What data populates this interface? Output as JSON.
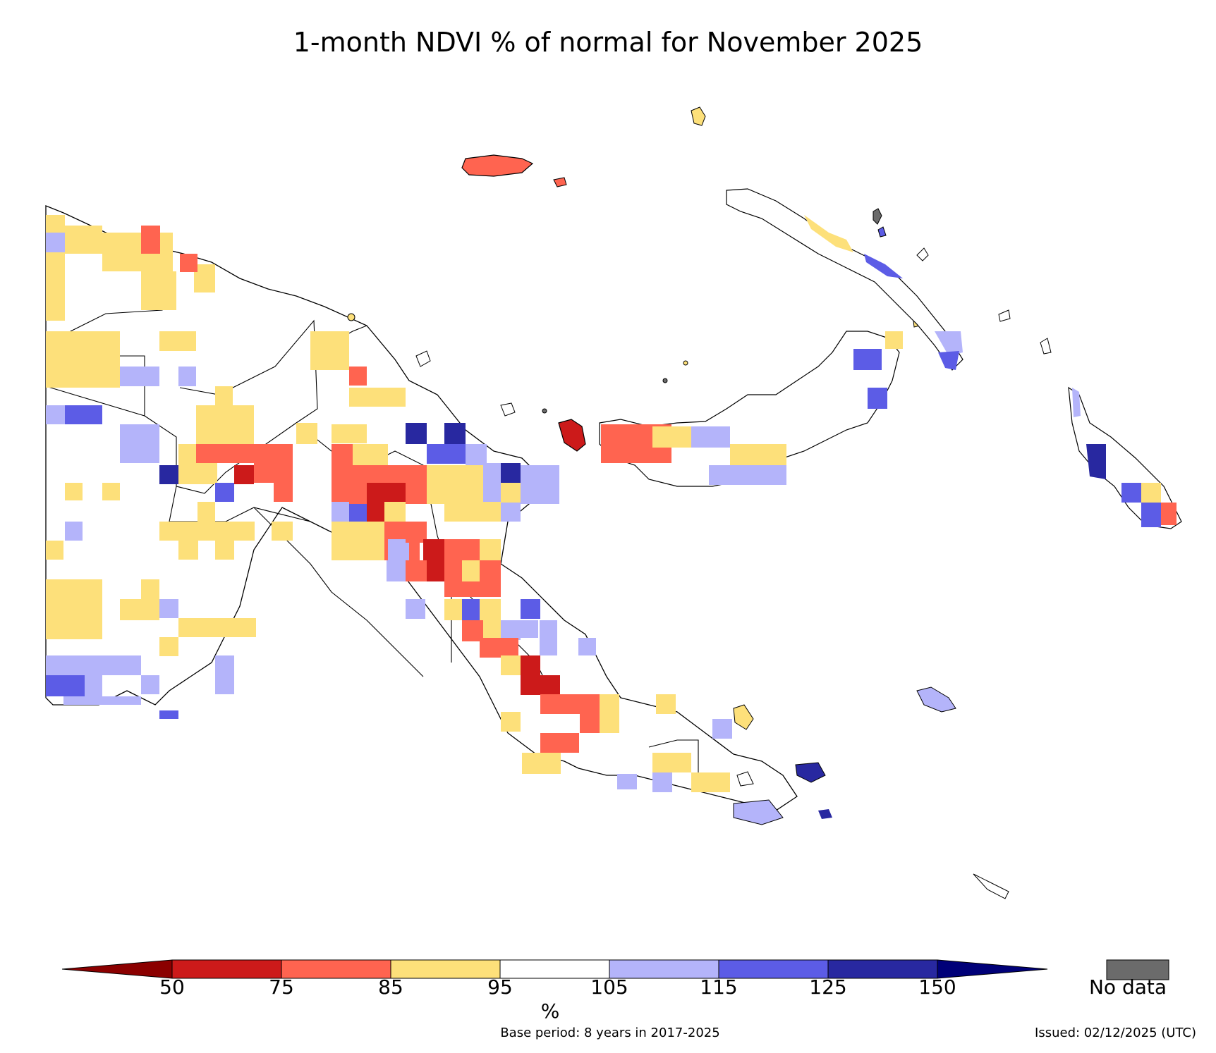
{
  "title": "1-month NDVI % of normal for November 2025",
  "legend": {
    "unit": "%",
    "ticks": [
      "50",
      "75",
      "85",
      "95",
      "105",
      "115",
      "125",
      "150"
    ],
    "classes": [
      {
        "range": "<50",
        "color": "#8b0000"
      },
      {
        "range": "50-75",
        "color": "#cc1a1a"
      },
      {
        "range": "75-85",
        "color": "#ff6450"
      },
      {
        "range": "85-95",
        "color": "#fde07a"
      },
      {
        "range": "95-105",
        "color": "#ffffff"
      },
      {
        "range": "105-115",
        "color": "#b4b4fa"
      },
      {
        "range": "115-125",
        "color": "#5c5ce6"
      },
      {
        "range": "125-150",
        "color": "#2828a0"
      },
      {
        "range": ">150",
        "color": "#000078"
      }
    ],
    "no_data_label": "No data",
    "no_data_color": "#6b6b6b"
  },
  "footer": {
    "base_period": "Base period: 8 years in 2017-2025",
    "issued": "Issued: 02/12/2025 (UTC)"
  },
  "map_data": {
    "region": "Papua New Guinea",
    "cell_classes": [
      "85-95",
      "105-115",
      "75-85",
      "115-125",
      "50-75",
      "125-150",
      "95-105"
    ]
  }
}
